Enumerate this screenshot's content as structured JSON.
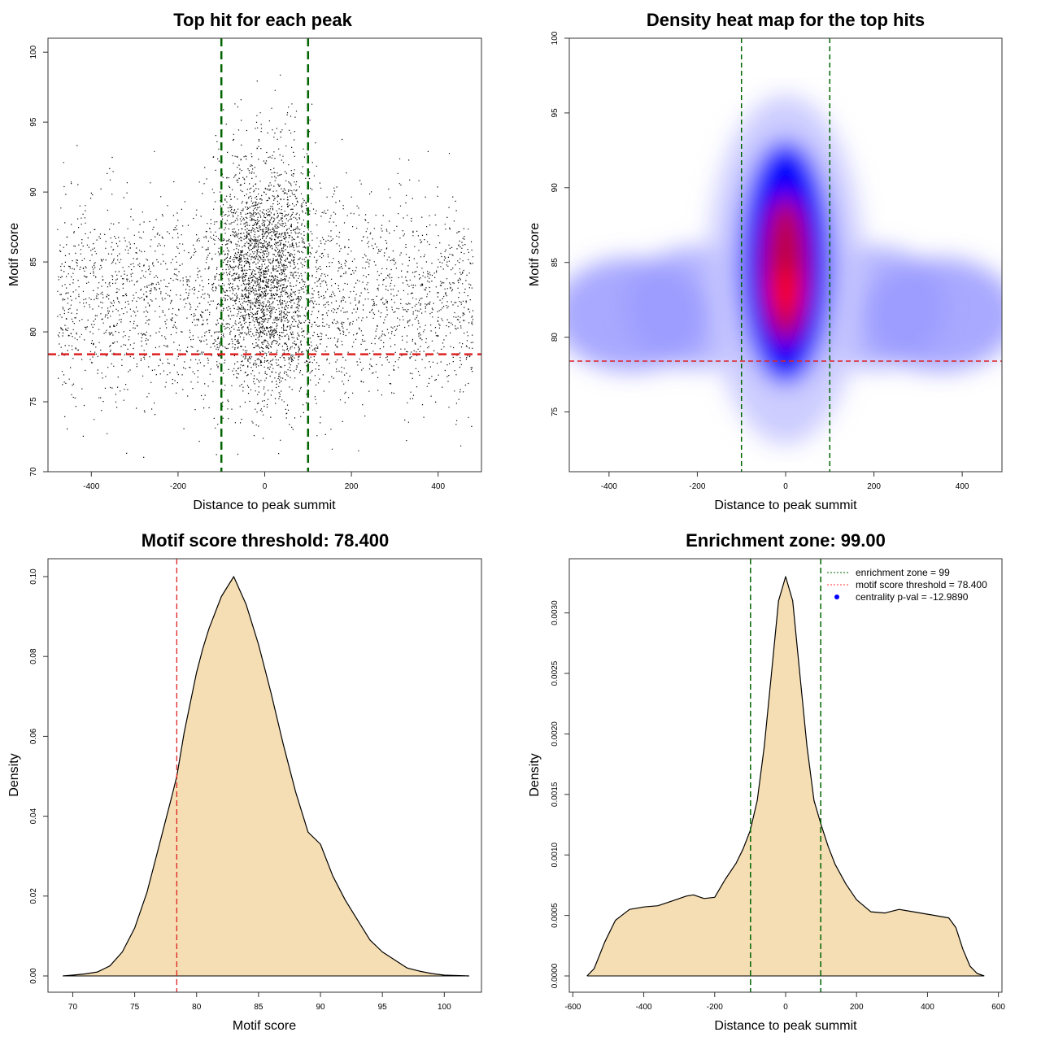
{
  "chart_data": [
    {
      "id": "scatter",
      "type": "scatter",
      "title": "Top hit for each peak",
      "xlabel": "Distance to peak summit",
      "ylabel": "Motif score",
      "xlim": [
        -500,
        500
      ],
      "ylim": [
        70,
        101
      ],
      "xticks": [
        -400,
        -200,
        0,
        200,
        400
      ],
      "yticks": [
        70,
        75,
        80,
        85,
        90,
        95,
        100
      ],
      "vlines": [
        -100,
        100
      ],
      "hline": 78.4,
      "point_color": "#000000",
      "vline_color": "#006400",
      "hline_color": "#dd2222",
      "point_count_estimate": 5200,
      "distribution": {
        "background_x_range": [
          -480,
          480
        ],
        "background_score_mean": 82.2,
        "background_score_sd": 3.6,
        "central_x_mean": 0,
        "central_x_sd": 55,
        "central_score_mean": 84.5,
        "central_score_sd": 4.3
      }
    },
    {
      "id": "heatmap",
      "type": "heatmap",
      "title": "Density heat map for the top hits",
      "xlabel": "Distance to peak summit",
      "ylabel": "Motif score",
      "xlim": [
        -490,
        490
      ],
      "ylim": [
        71,
        100
      ],
      "xticks": [
        -400,
        -200,
        0,
        200,
        400
      ],
      "yticks": [
        75,
        80,
        85,
        90,
        95,
        100
      ],
      "vlines": [
        -100,
        100
      ],
      "hline": 78.4,
      "colors": [
        "#ffffff",
        "#0000ff",
        "#ff0000"
      ],
      "peak": {
        "x": 0,
        "y": 83
      }
    },
    {
      "id": "score_density",
      "type": "area",
      "title": "Motif score threshold: 78.400",
      "xlabel": "Motif score",
      "ylabel": "Density",
      "xlim": [
        68,
        103
      ],
      "ylim": [
        0,
        0.1
      ],
      "xticks": [
        70,
        75,
        80,
        85,
        90,
        95,
        100
      ],
      "yticks": [
        0.0,
        0.02,
        0.04,
        0.06,
        0.08,
        0.1
      ],
      "ytick_labels": [
        "0.00",
        "0.02",
        "0.04",
        "0.06",
        "0.08",
        "0.10"
      ],
      "vline": 78.4,
      "fill": "#f5deb3",
      "x": [
        69.2,
        70,
        71,
        72,
        73,
        74,
        75,
        76,
        77,
        78,
        78.4,
        79,
        80,
        80.5,
        81,
        82,
        83,
        84,
        85,
        85.5,
        86,
        87,
        88,
        89,
        90,
        91,
        92,
        93,
        94,
        95,
        96,
        97,
        98,
        99,
        100,
        101,
        102
      ],
      "y": [
        0.0,
        0.0002,
        0.0005,
        0.001,
        0.0025,
        0.006,
        0.012,
        0.021,
        0.033,
        0.045,
        0.05,
        0.061,
        0.076,
        0.082,
        0.087,
        0.095,
        0.1,
        0.093,
        0.083,
        0.077,
        0.071,
        0.058,
        0.046,
        0.036,
        0.033,
        0.025,
        0.019,
        0.014,
        0.009,
        0.006,
        0.004,
        0.002,
        0.0012,
        0.0006,
        0.0002,
        0.0001,
        0.0
      ]
    },
    {
      "id": "distance_density",
      "type": "area",
      "title": "Enrichment zone: 99.00",
      "xlabel": "Distance to peak summit",
      "ylabel": "Density",
      "xlim": [
        -610,
        610
      ],
      "ylim": [
        0,
        0.0033
      ],
      "xticks": [
        -600,
        -400,
        -200,
        0,
        200,
        400,
        600
      ],
      "yticks": [
        0.0,
        0.0005,
        0.001,
        0.0015,
        0.002,
        0.0025,
        0.003
      ],
      "ytick_labels": [
        "0.0000",
        "0.0005",
        "0.0010",
        "0.0015",
        "0.0020",
        "0.0025",
        "0.0030"
      ],
      "vlines": [
        -99,
        99
      ],
      "fill": "#f5deb3",
      "x": [
        -560,
        -540,
        -510,
        -480,
        -440,
        -400,
        -360,
        -320,
        -280,
        -260,
        -230,
        -200,
        -170,
        -140,
        -120,
        -100,
        -80,
        -60,
        -40,
        -20,
        0,
        20,
        40,
        60,
        80,
        100,
        120,
        140,
        170,
        200,
        240,
        280,
        320,
        360,
        400,
        440,
        460,
        480,
        500,
        520,
        540,
        560
      ],
      "y": [
        0.0,
        6e-05,
        0.00028,
        0.00046,
        0.00055,
        0.00057,
        0.00058,
        0.00062,
        0.00066,
        0.00067,
        0.00064,
        0.00065,
        0.0008,
        0.00093,
        0.00105,
        0.0012,
        0.00145,
        0.0019,
        0.0025,
        0.0031,
        0.0033,
        0.0031,
        0.0025,
        0.0019,
        0.00145,
        0.00125,
        0.00107,
        0.00092,
        0.00076,
        0.00063,
        0.00053,
        0.00052,
        0.00055,
        0.00053,
        0.00051,
        0.00049,
        0.00048,
        0.0004,
        0.00022,
        8e-05,
        2e-05,
        0.0
      ]
    }
  ],
  "legend": {
    "items": [
      {
        "label": "enrichment zone = 99",
        "color": "#006400",
        "kind": "dotted-line"
      },
      {
        "label": "motif score threshold = 78.400",
        "color": "#ff3333",
        "kind": "dotted-line"
      },
      {
        "label": "centrality p-val = -12.9890",
        "color": "#0000ff",
        "kind": "dot"
      }
    ]
  }
}
